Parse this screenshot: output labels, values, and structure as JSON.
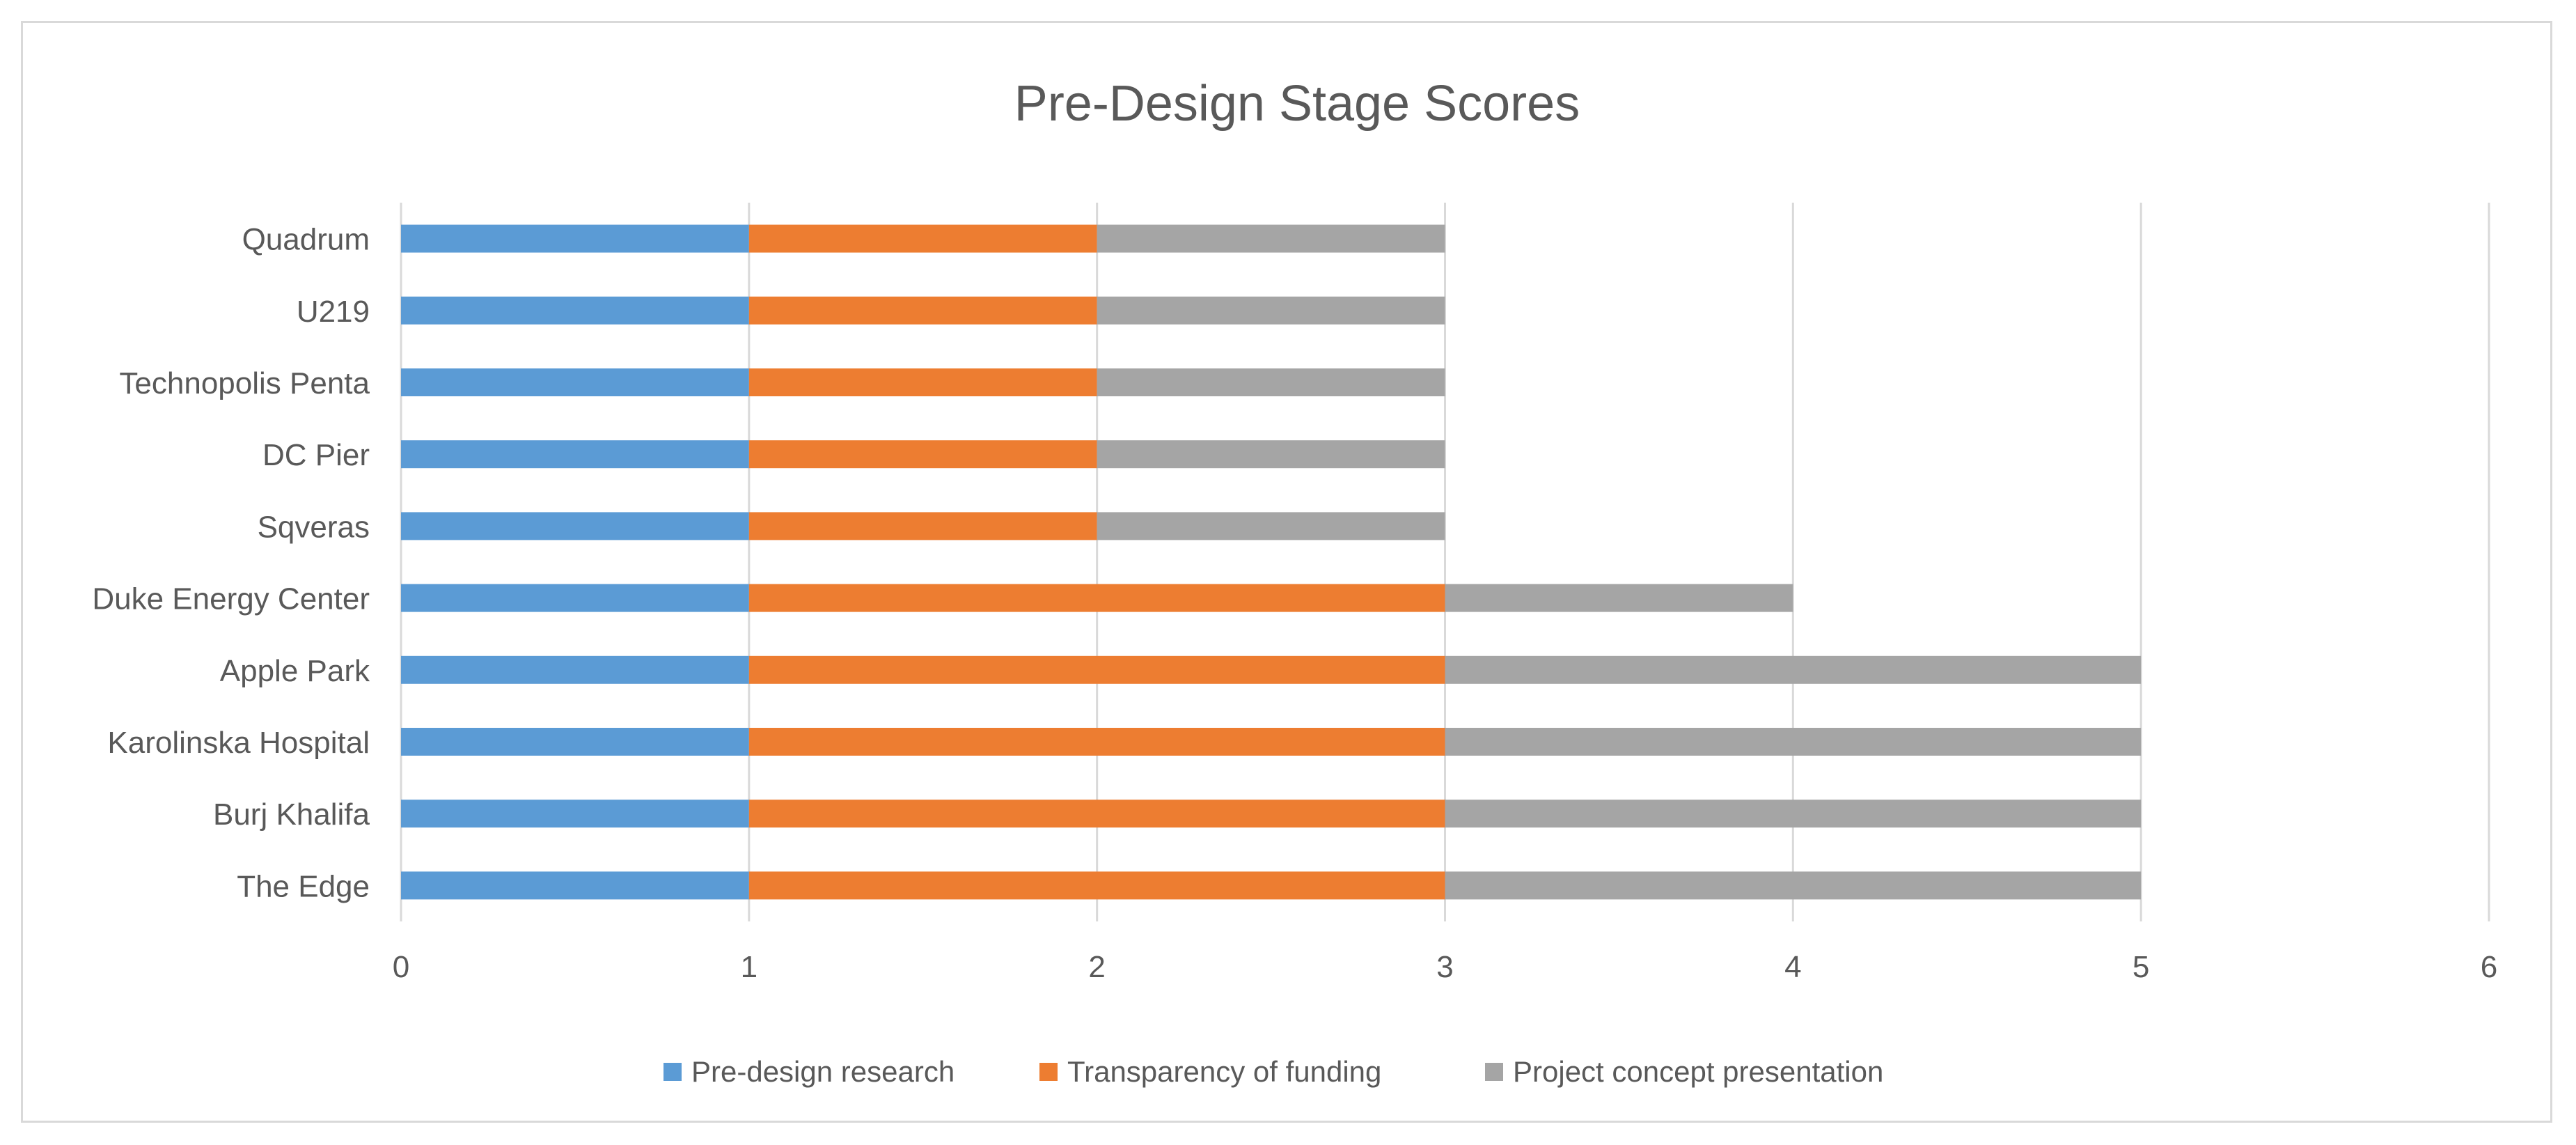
{
  "chart_data": {
    "type": "bar",
    "orientation": "horizontal",
    "stacked": true,
    "title": "Pre-Design Stage Scores",
    "xlabel": "",
    "ylabel": "",
    "xlim": [
      0,
      6
    ],
    "x_ticks": [
      "0",
      "1",
      "2",
      "3",
      "4",
      "5",
      "6"
    ],
    "grid": true,
    "legend_position": "bottom",
    "categories": [
      "The Edge",
      "Burj Khalifa",
      "Karolinska Hospital",
      "Apple Park",
      "Duke Energy Center",
      "Sqveras",
      "DC Pier",
      "Technopolis Penta",
      "U219",
      "Quadrum"
    ],
    "series": [
      {
        "name": "Pre-design research",
        "color": "#5b9bd5",
        "values": [
          1,
          1,
          1,
          1,
          1,
          1,
          1,
          1,
          1,
          1
        ]
      },
      {
        "name": "Transparency of funding",
        "color": "#ed7d31",
        "values": [
          2,
          2,
          2,
          2,
          2,
          1,
          1,
          1,
          1,
          1
        ]
      },
      {
        "name": "Project concept presentation",
        "color": "#a5a5a5",
        "values": [
          2,
          2,
          2,
          2,
          1,
          1,
          1,
          1,
          1,
          1
        ]
      }
    ]
  }
}
